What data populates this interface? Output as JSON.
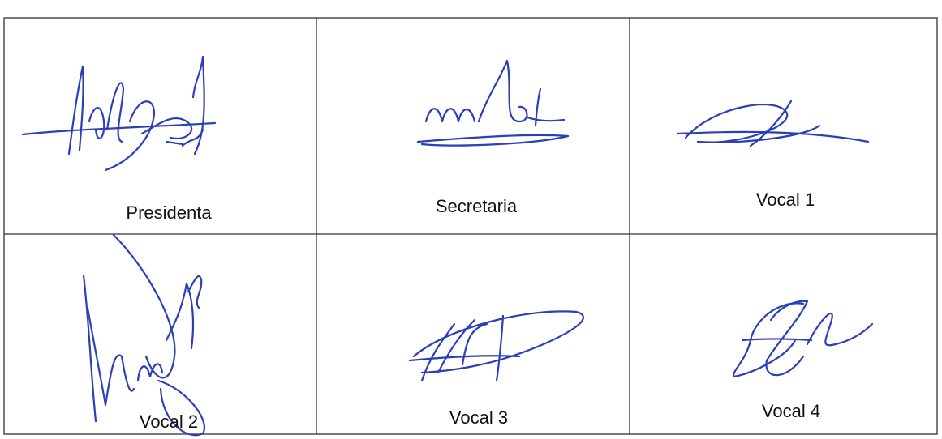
{
  "table": {
    "rows": [
      [
        "Presidenta",
        "Secretaria",
        "Vocal 1"
      ],
      [
        "Vocal 2",
        "Vocal 3",
        "Vocal 4"
      ]
    ]
  }
}
